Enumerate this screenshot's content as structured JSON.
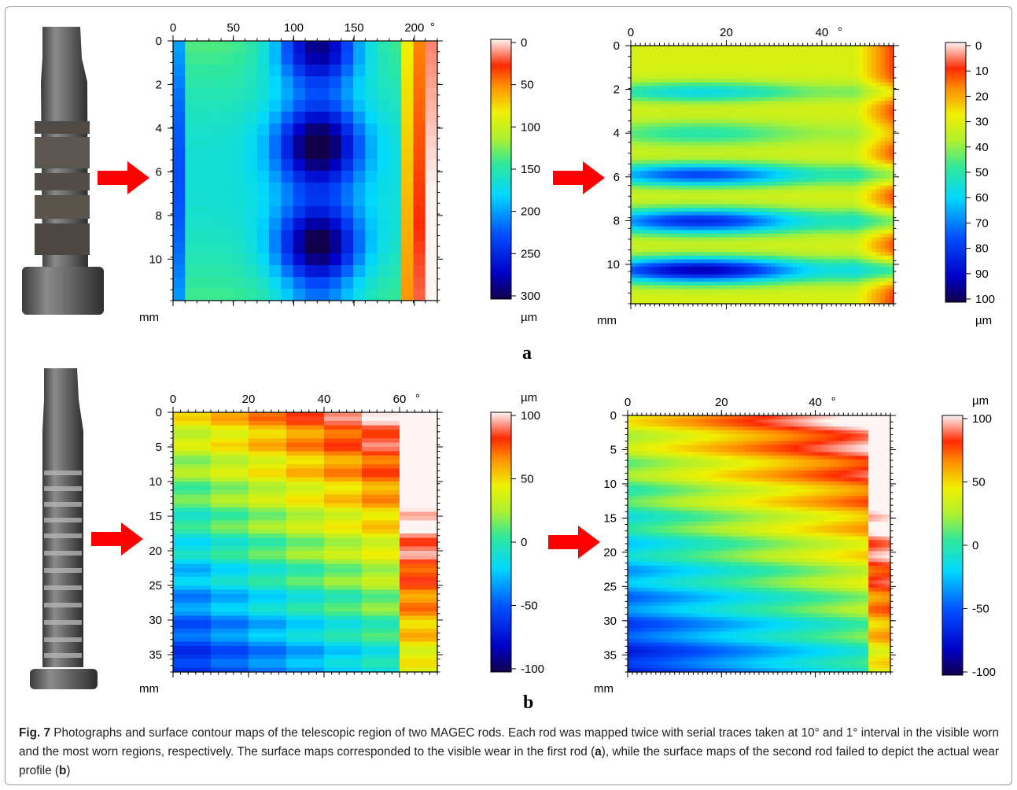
{
  "figure": {
    "rows": [
      {
        "label": "a",
        "maps": [
          {
            "x_ticks": [
              "0",
              "50",
              "100",
              "150",
              "200"
            ],
            "x_unit": "°",
            "y_ticks": [
              "0",
              "2",
              "4",
              "6",
              "8",
              "10"
            ],
            "y_unit": "mm",
            "colorbar_ticks": [
              "0",
              "50",
              "100",
              "150",
              "200",
              "250",
              "300"
            ],
            "colorbar_unit": "µm"
          },
          {
            "x_ticks": [
              "0",
              "20",
              "40"
            ],
            "x_unit": "°",
            "y_ticks": [
              "0",
              "2",
              "4",
              "6",
              "8",
              "10"
            ],
            "y_unit": "mm",
            "colorbar_ticks": [
              "0",
              "10",
              "20",
              "30",
              "40",
              "50",
              "60",
              "70",
              "80",
              "90",
              "100"
            ],
            "colorbar_unit": "µm"
          }
        ]
      },
      {
        "label": "b",
        "maps": [
          {
            "x_ticks": [
              "0",
              "20",
              "40",
              "60"
            ],
            "x_unit": "°",
            "y_ticks": [
              "0",
              "5",
              "10",
              "15",
              "20",
              "25",
              "30",
              "35"
            ],
            "y_unit": "mm",
            "colorbar_ticks": [
              "100",
              "50",
              "0",
              "-50",
              "-100"
            ],
            "colorbar_unit": "µm"
          },
          {
            "x_ticks": [
              "0",
              "20",
              "40"
            ],
            "x_unit": "°",
            "y_ticks": [
              "0",
              "5",
              "10",
              "15",
              "20",
              "25",
              "30",
              "35"
            ],
            "y_unit": "mm",
            "colorbar_ticks": [
              "100",
              "50",
              "0",
              "-50",
              "-100"
            ],
            "colorbar_unit": "µm"
          }
        ]
      }
    ],
    "colors": {
      "arrow": "#ff0000",
      "frame": "#9a9a9a"
    }
  },
  "caption": {
    "fig_label": "Fig. 7",
    "text_1": " Photographs and surface contour maps of the telescopic region of two MAGEC rods. Each rod was mapped twice with serial traces taken at 10° and 1° interval in the visible worn and the most worn regions, respectively. The surface maps corresponded to the visible wear in the first rod (",
    "ref_a": "a",
    "text_2": "), while the surface maps of the second rod failed to depict the actual wear profile (",
    "ref_b": "b",
    "text_3": ")"
  }
}
